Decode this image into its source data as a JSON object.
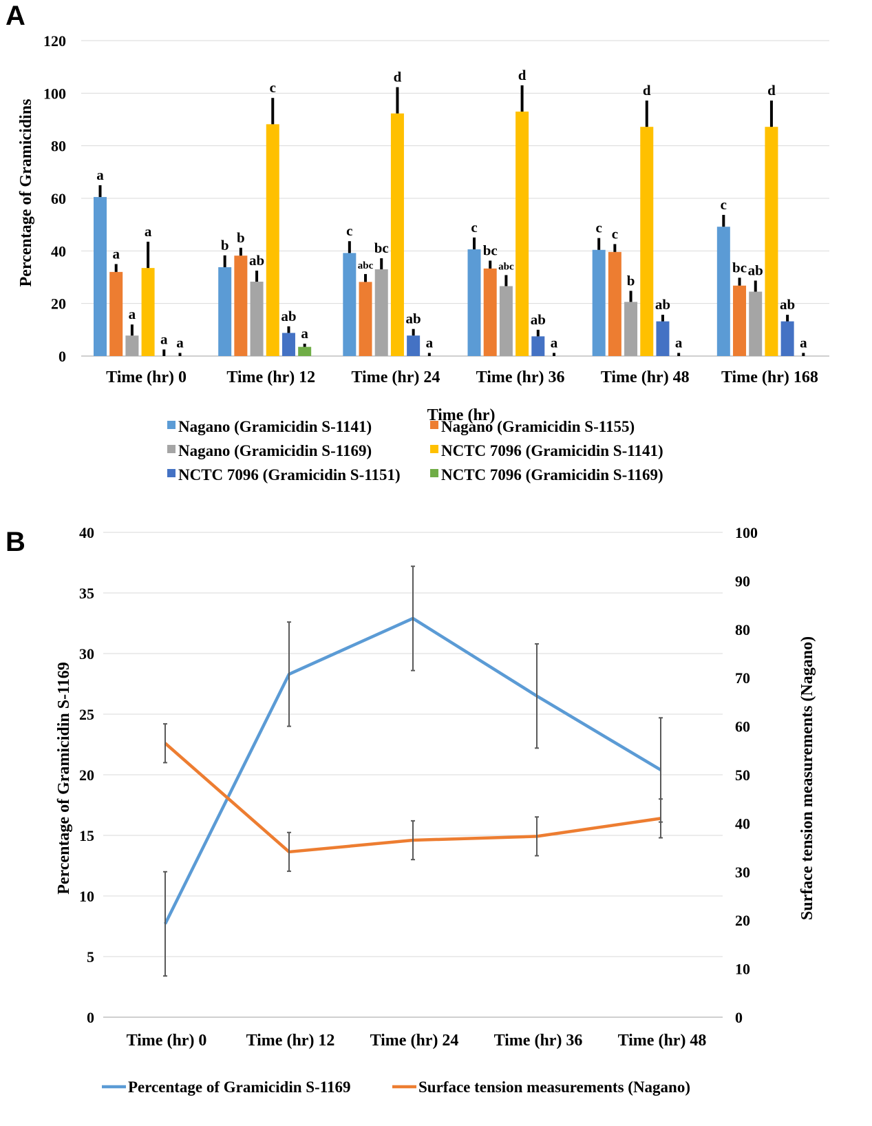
{
  "panels": {
    "a_label": "A",
    "b_label": "B"
  },
  "chart_data": [
    {
      "type": "bar",
      "title": "",
      "ylabel": "Percentage of Gramicidins",
      "xlabel": "Time (hr)",
      "ylim": [
        0,
        120
      ],
      "yticks": [
        "0",
        "20",
        "40",
        "60",
        "80",
        "100",
        "120"
      ],
      "categories": [
        "Time (hr) 0",
        "Time (hr) 12",
        "Time (hr) 24",
        "Time (hr) 36",
        "Time (hr) 48",
        "Time (hr) 168"
      ],
      "series": [
        {
          "name": "Nagano (Gramicidin S-1141)",
          "color": "#5B9BD5",
          "values": [
            60.5,
            33.8,
            39.2,
            40.6,
            40.4,
            49.2
          ],
          "errors": [
            4.5,
            4.5,
            4.5,
            4.5,
            4.5,
            4.5
          ],
          "letters": [
            "a",
            "b",
            "c",
            "c",
            "c",
            "c"
          ]
        },
        {
          "name": "Nagano (Gramicidin S-1155)",
          "color": "#ED7D31",
          "values": [
            32,
            38.2,
            28.2,
            33.3,
            39.6,
            26.8
          ],
          "errors": [
            3,
            3,
            3,
            3,
            3,
            3
          ],
          "letters": [
            "a",
            "b",
            "abc",
            "bc",
            "c",
            "bc"
          ]
        },
        {
          "name": "Nagano (Gramicidin S-1169)",
          "color": "#A5A5A5",
          "values": [
            7.8,
            28.3,
            33.0,
            26.6,
            20.6,
            24.5
          ],
          "errors": [
            4.2,
            4.2,
            4.2,
            4.2,
            4.2,
            4.2
          ],
          "letters": [
            "a",
            "ab",
            "bc",
            "abc",
            "b",
            "ab"
          ]
        },
        {
          "name": "NCTC 7096 (Gramicidin S-1141)",
          "color": "#FFC000",
          "values": [
            33.5,
            88.2,
            92.3,
            93.0,
            87.2,
            87.2
          ],
          "errors": [
            10,
            10,
            10,
            10,
            10,
            10
          ],
          "letters": [
            "a",
            "c",
            "d",
            "d",
            "d",
            "d"
          ]
        },
        {
          "name": "NCTC 7096 (Gramicidin S-1151)",
          "color": "#4472C4",
          "values": [
            0,
            8.8,
            7.8,
            7.5,
            13.2,
            13.2
          ],
          "errors": [
            2.5,
            2.5,
            2.5,
            2.5,
            2.5,
            2.5
          ],
          "letters": [
            "a",
            "ab",
            "ab",
            "ab",
            "ab",
            "ab"
          ]
        },
        {
          "name": "NCTC 7096 (Gramicidin S-1169)",
          "color": "#70AD47",
          "values": [
            0,
            3.5,
            0,
            0,
            0,
            0
          ],
          "errors": [
            1.2,
            1.2,
            1.2,
            1.2,
            1.2,
            1.2
          ],
          "letters": [
            "a",
            "a",
            "a",
            "a",
            "a",
            "a"
          ]
        }
      ]
    },
    {
      "type": "line",
      "title": "",
      "ylabel": "Percentage of Gramicidin S-1169",
      "y2label": "Surface  tension measurements (Nagano)",
      "ylim": [
        0,
        40
      ],
      "y2lim": [
        0,
        100
      ],
      "yticks": [
        "0",
        "5",
        "10",
        "15",
        "20",
        "25",
        "30",
        "35",
        "40"
      ],
      "y2ticks": [
        "0",
        "10",
        "20",
        "30",
        "40",
        "50",
        "60",
        "70",
        "80",
        "90",
        "100"
      ],
      "categories": [
        "Time (hr) 0",
        "Time (hr) 12",
        "Time (hr) 24",
        "Time (hr) 36",
        "Time (hr) 48"
      ],
      "series": [
        {
          "name": "Percentage of Gramicidin S-1169",
          "axis": "left",
          "color": "#5B9BD5",
          "values": [
            7.7,
            28.3,
            32.9,
            26.5,
            20.4
          ],
          "errors": [
            4.3,
            4.3,
            4.3,
            4.3,
            4.3
          ]
        },
        {
          "name": "Surface tension measurements (Nagano)",
          "axis": "right",
          "color": "#ED7D31",
          "values": [
            56.5,
            34.1,
            36.5,
            37.3,
            41.0
          ],
          "errors": [
            4.0,
            4.0,
            4.0,
            4.0,
            4.0
          ]
        }
      ]
    }
  ]
}
